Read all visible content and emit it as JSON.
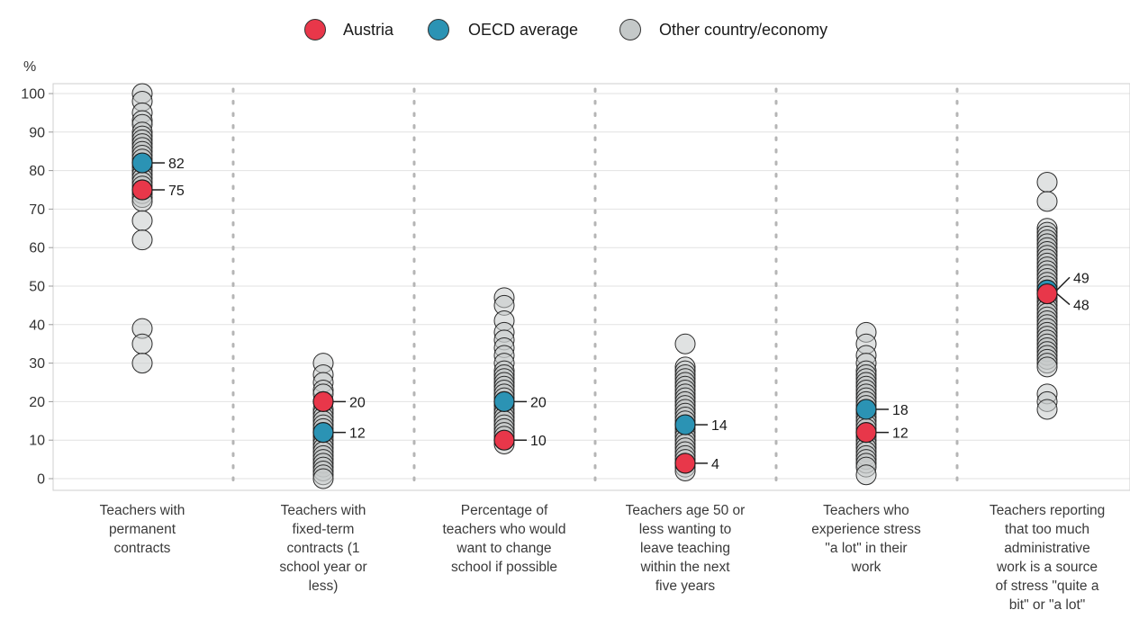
{
  "chart_data": {
    "type": "scatter",
    "title": "",
    "xlabel": "",
    "ylabel": "%",
    "ylim": [
      0,
      100
    ],
    "yticks": [
      0,
      10,
      20,
      30,
      40,
      50,
      60,
      70,
      80,
      90,
      100
    ],
    "grid": true,
    "legend_position": "top-center",
    "legend": [
      {
        "name": "Austria",
        "color": "#e8374a"
      },
      {
        "name": "OECD average",
        "color": "#2b93b4"
      },
      {
        "name": "Other country/economy",
        "color": "#c4c8c8"
      }
    ],
    "categories": [
      "Teachers with permanent contracts",
      "Teachers with fixed-term contracts (1 school year or less)",
      "Percentage of teachers who would want to change school if possible",
      "Teachers age 50 or less wanting to leave teaching within the next five years",
      "Teachers who experience stress \"a lot\" in their work",
      "Teachers reporting that too much administrative work is a source of stress \"quite a bit\" or \"a lot\""
    ],
    "category_lines": [
      [
        "Teachers with",
        "permanent",
        "contracts"
      ],
      [
        "Teachers with",
        "fixed-term",
        "contracts (1",
        "school year or",
        "less)"
      ],
      [
        "Percentage of",
        "teachers who would",
        "want to change",
        "school if possible"
      ],
      [
        "Teachers age 50 or",
        "less wanting to",
        "leave teaching",
        "within the next",
        "five years"
      ],
      [
        "Teachers who",
        "experience stress",
        "\"a lot\" in their",
        "work"
      ],
      [
        "Teachers reporting",
        "that too much",
        "administrative",
        "work is a source",
        "of stress \"quite a",
        "bit\" or \"a lot\""
      ]
    ],
    "series": [
      {
        "name": "Austria",
        "values": [
          75,
          20,
          10,
          4,
          12,
          48
        ],
        "labels": [
          "75",
          "20",
          "10",
          "4",
          "12",
          "48"
        ]
      },
      {
        "name": "OECD average",
        "values": [
          82,
          12,
          20,
          14,
          18,
          49
        ],
        "labels": [
          "82",
          "12",
          "20",
          "14",
          "18",
          "49"
        ]
      },
      {
        "name": "Other country/economy",
        "values": [
          [
            100,
            98,
            95,
            93,
            92,
            90,
            89,
            88,
            87,
            86,
            85,
            84,
            83,
            81,
            80,
            79,
            78,
            77,
            76,
            74,
            73,
            72,
            67,
            62,
            39,
            35,
            30
          ],
          [
            30,
            27,
            25,
            23,
            22,
            20,
            18,
            17,
            16,
            15,
            14,
            13,
            11,
            10,
            9,
            8,
            7,
            6,
            5,
            4,
            3,
            2,
            1,
            0
          ],
          [
            47,
            45,
            41,
            38,
            36,
            34,
            32,
            30,
            28,
            27,
            26,
            25,
            24,
            23,
            22,
            21,
            19,
            18,
            17,
            16,
            15,
            14,
            13,
            12,
            11,
            9
          ],
          [
            35,
            29,
            28,
            27,
            26,
            25,
            24,
            23,
            22,
            21,
            20,
            19,
            18,
            17,
            16,
            15,
            13,
            12,
            11,
            10,
            9,
            8,
            7,
            6,
            5,
            3,
            2
          ],
          [
            38,
            35,
            32,
            30,
            28,
            27,
            26,
            25,
            24,
            23,
            22,
            21,
            20,
            19,
            17,
            16,
            15,
            14,
            13,
            11,
            10,
            9,
            8,
            7,
            6,
            5,
            4,
            3,
            1
          ],
          [
            77,
            72,
            65,
            64,
            63,
            62,
            61,
            60,
            59,
            58,
            57,
            56,
            55,
            54,
            53,
            52,
            51,
            50,
            47,
            46,
            45,
            44,
            43,
            42,
            41,
            40,
            39,
            38,
            37,
            36,
            35,
            34,
            33,
            32,
            31,
            30,
            29,
            22,
            20,
            18
          ]
        ]
      }
    ]
  }
}
